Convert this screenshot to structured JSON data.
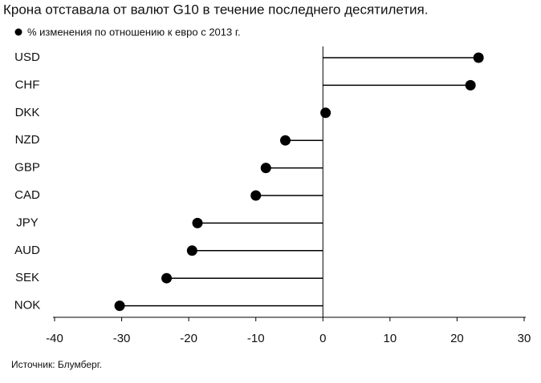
{
  "chart_data": {
    "type": "lollipop",
    "title": "Крона отставала от валют G10 в течение последнего десятилетия.",
    "source": "Источник: Блумберг.",
    "categories": [
      "USD",
      "CHF",
      "DKK",
      "NZD",
      "GBP",
      "CAD",
      "JPY",
      "AUD",
      "SEK",
      "NOK"
    ],
    "series": [
      {
        "name": "% изменения по отношению к евро с 2013 г.",
        "color": "#000000",
        "values": [
          23.2,
          22.0,
          0.4,
          -5.6,
          -8.5,
          -10.0,
          -18.7,
          -19.5,
          -23.3,
          -30.3
        ]
      }
    ],
    "xlim": [
      -40,
      30
    ],
    "xticks": [
      -40,
      -30,
      -20,
      -10,
      0,
      10,
      20,
      30
    ]
  }
}
